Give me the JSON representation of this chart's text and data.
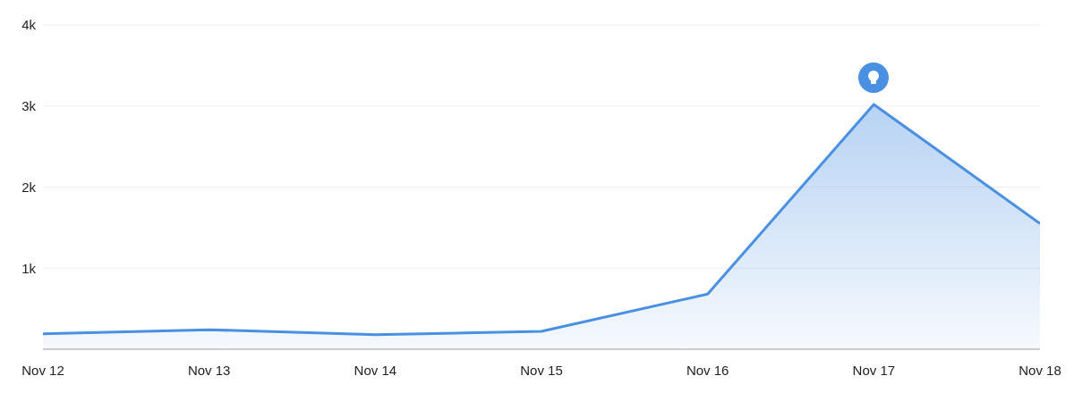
{
  "chart_data": {
    "type": "area",
    "categories": [
      "Nov 12",
      "Nov 13",
      "Nov 14",
      "Nov 15",
      "Nov 16",
      "Nov 17",
      "Nov 18"
    ],
    "series": [
      {
        "color": "#4a90e2",
        "values": [
          190,
          240,
          180,
          220,
          680,
          3020,
          1550
        ]
      }
    ],
    "ylim": [
      0,
      4000
    ],
    "yticks": [
      {
        "value": 0,
        "label": null
      },
      {
        "value": 1000,
        "label": "1k"
      },
      {
        "value": 2000,
        "label": "2k"
      },
      {
        "value": 3000,
        "label": "3k"
      },
      {
        "value": 4000,
        "label": "4k"
      }
    ],
    "grid": "y",
    "legend": false,
    "marker": "none",
    "line_style": "solid"
  }
}
